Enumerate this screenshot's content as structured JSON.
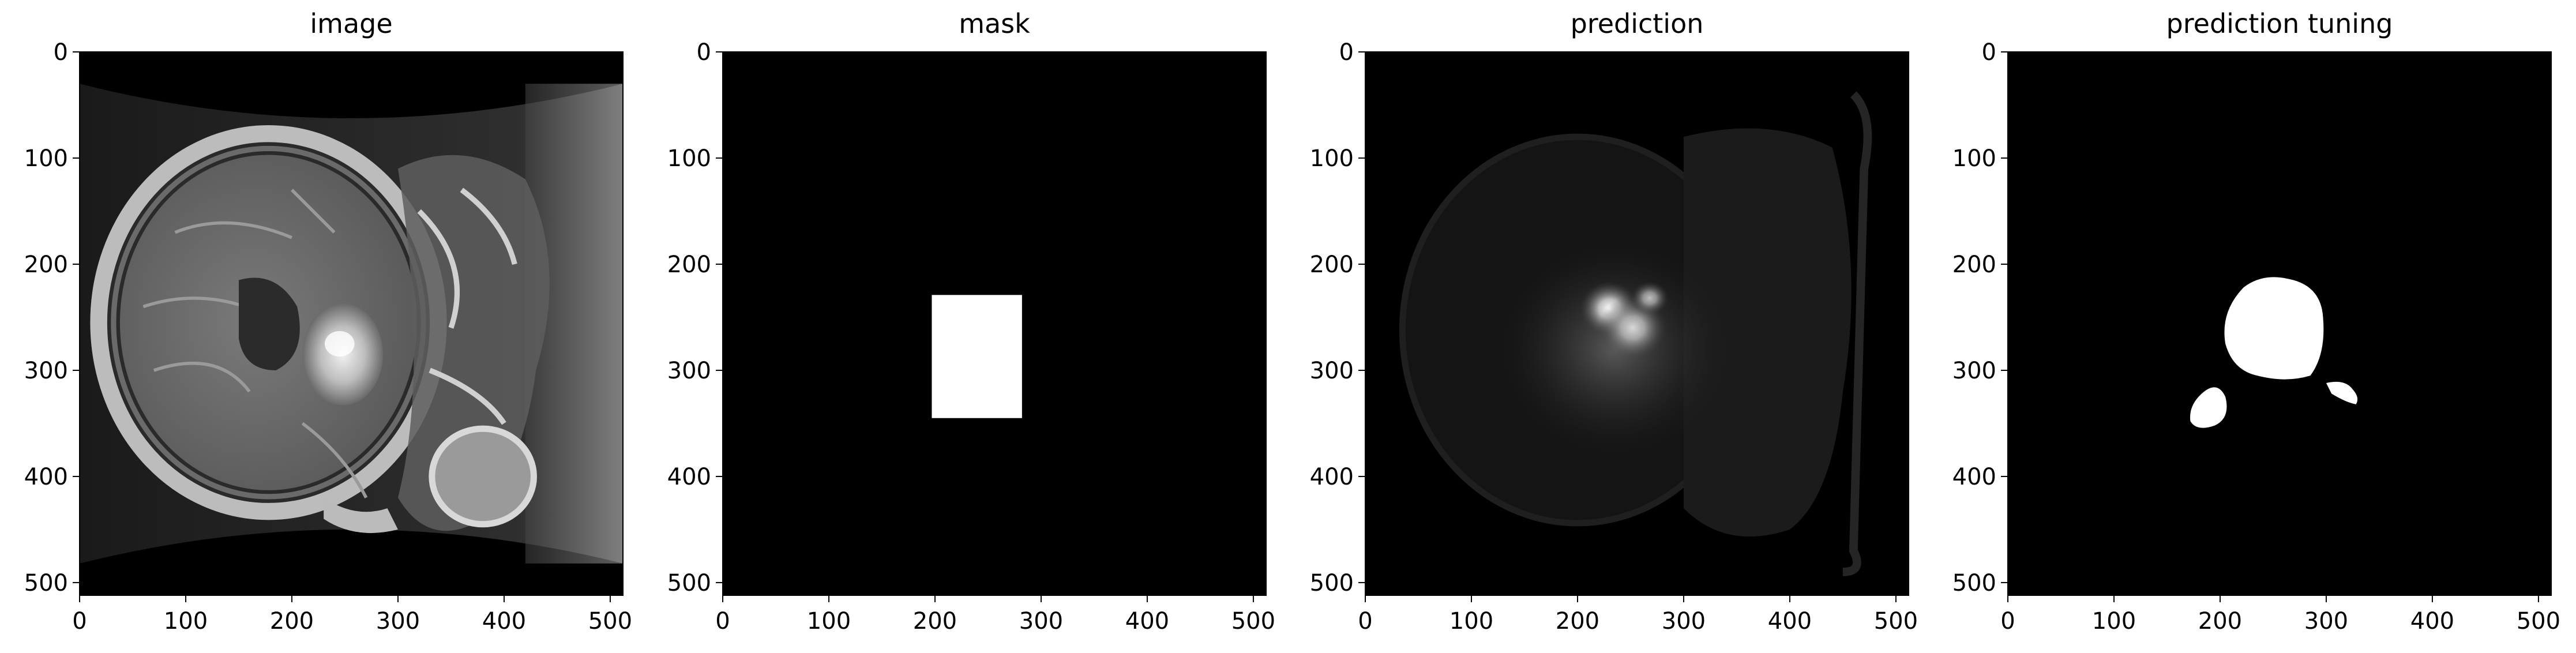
{
  "figure": {
    "background_color": "#ffffff",
    "panels": [
      {
        "id": "image",
        "title": "image",
        "content": "mri-slice",
        "xticks": [
          "0",
          "100",
          "200",
          "300",
          "400",
          "500"
        ],
        "yticks": [
          "0",
          "100",
          "200",
          "300",
          "400",
          "500"
        ]
      },
      {
        "id": "mask",
        "title": "mask",
        "content": "binary-mask",
        "xticks": [
          "0",
          "100",
          "200",
          "300",
          "400",
          "500"
        ],
        "yticks": [
          "0",
          "100",
          "200",
          "300",
          "400",
          "500"
        ]
      },
      {
        "id": "prediction",
        "title": "prediction",
        "content": "prediction-heatmap",
        "xticks": [
          "0",
          "100",
          "200",
          "300",
          "400",
          "500"
        ],
        "yticks": [
          "0",
          "100",
          "200",
          "300",
          "400",
          "500"
        ]
      },
      {
        "id": "prediction-tuning",
        "title": "prediction tuning",
        "content": "binary-segmentation",
        "xticks": [
          "0",
          "100",
          "200",
          "300",
          "400",
          "500"
        ],
        "yticks": [
          "0",
          "100",
          "200",
          "300",
          "400",
          "500"
        ]
      }
    ],
    "axis_range": [
      0,
      512
    ],
    "image_colormap": "gray"
  }
}
